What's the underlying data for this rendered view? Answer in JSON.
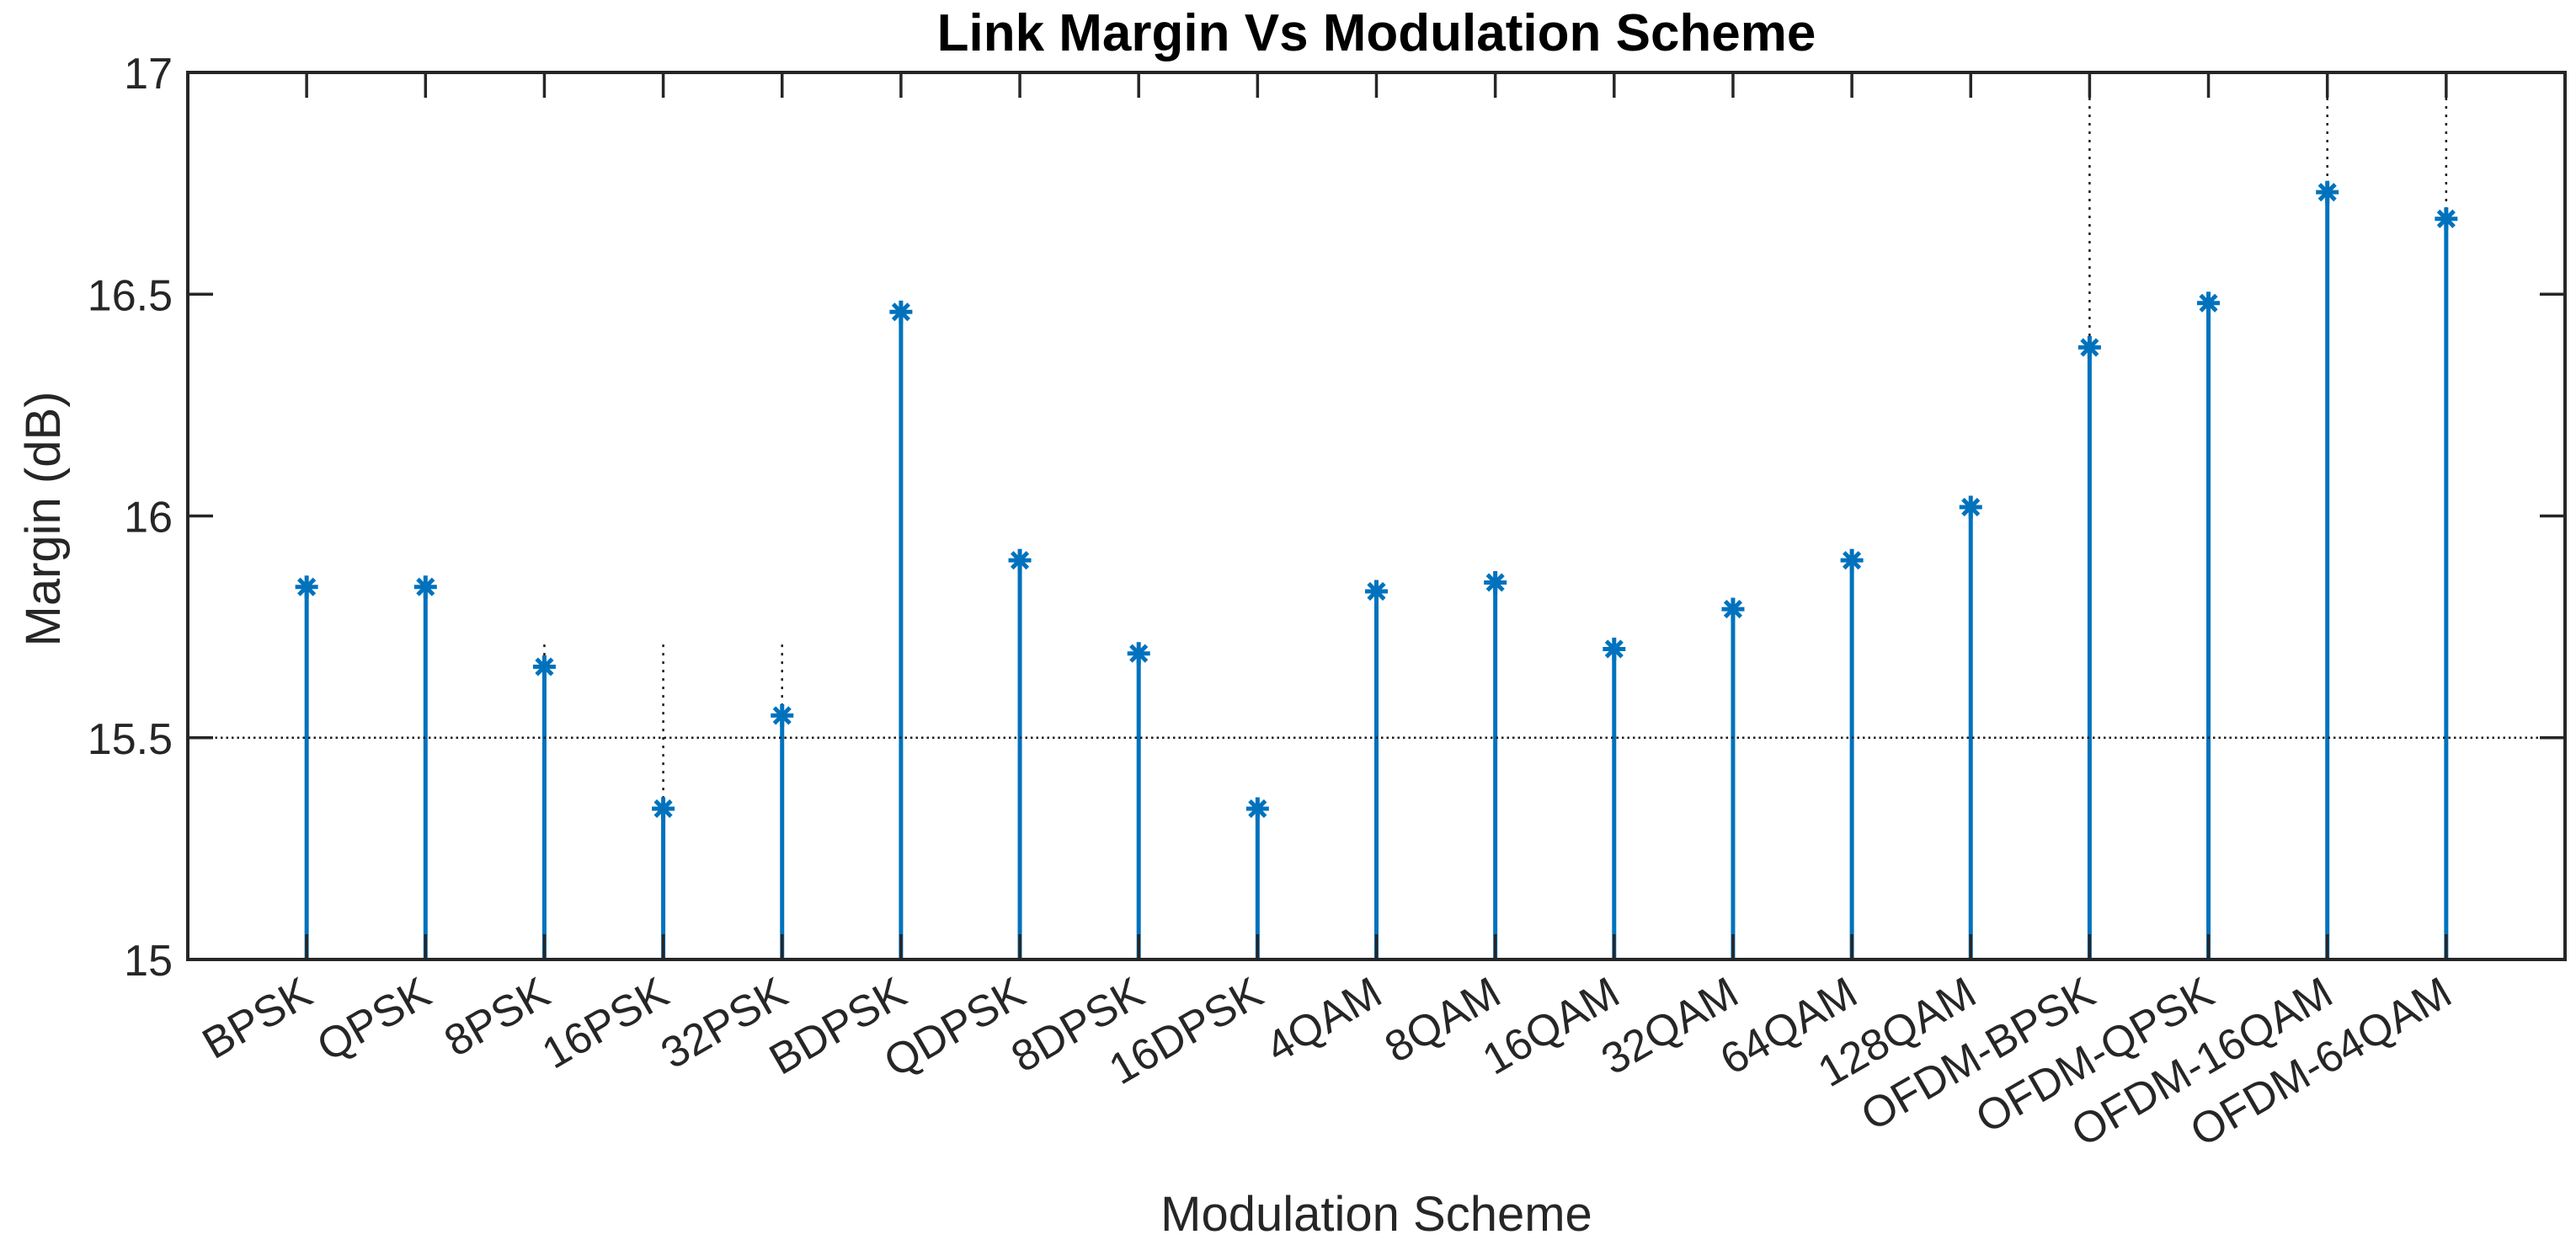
{
  "chart_data": {
    "type": "stem",
    "title": "Link Margin Vs Modulation Scheme",
    "xlabel": "Modulation Scheme",
    "ylabel": "Margin (dB)",
    "categories": [
      "BPSK",
      "QPSK",
      "8PSK",
      "16PSK",
      "32PSK",
      "BDPSK",
      "QDPSK",
      "8DPSK",
      "16DPSK",
      "4QAM",
      "8QAM",
      "16QAM",
      "32QAM",
      "64QAM",
      "128QAM",
      "OFDM-BPSK",
      "OFDM-QPSK",
      "OFDM-16QAM",
      "OFDM-64QAM"
    ],
    "values": [
      15.84,
      15.84,
      15.66,
      15.34,
      15.55,
      16.46,
      15.9,
      15.69,
      15.34,
      15.83,
      15.85,
      15.7,
      15.79,
      15.9,
      16.02,
      16.38,
      16.48,
      16.73,
      16.67
    ],
    "ylim": [
      15,
      17
    ],
    "yticks": [
      15,
      15.5,
      16,
      16.5,
      17
    ],
    "xtick_label_rotation_deg": 30,
    "reference_line_y": 15.5,
    "dotted_extensions": [
      {
        "category": "8PSK",
        "from": 15.66,
        "to": 15.71
      },
      {
        "category": "16PSK",
        "from": 15.34,
        "to": 15.71
      },
      {
        "category": "32PSK",
        "from": 15.55,
        "to": 15.71
      },
      {
        "category": "OFDM-BPSK",
        "from": 16.38,
        "to": 17
      },
      {
        "category": "OFDM-16QAM",
        "from": 16.73,
        "to": 17
      },
      {
        "category": "OFDM-64QAM",
        "from": 16.67,
        "to": 17
      }
    ],
    "marker": "asterisk",
    "grid": false,
    "legend": null,
    "colors": {
      "stem": "#0072BD",
      "axis": "#262626",
      "reference": "#1a1a1a",
      "dotted": "#1a1a1a",
      "title": "#000000"
    }
  }
}
